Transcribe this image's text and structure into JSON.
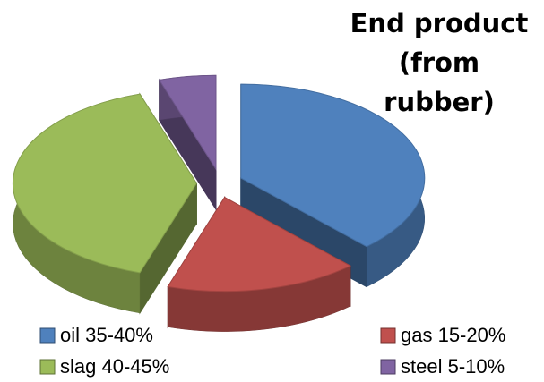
{
  "chart_data": {
    "type": "pie",
    "title": "End product (from rubber)",
    "categories": [
      "oil 35-40%",
      "gas 15-20%",
      "slag 40-45%",
      "steel 5-10%"
    ],
    "values": [
      38,
      17,
      40,
      5
    ],
    "colors": [
      "#4f81bd",
      "#c0504d",
      "#9bbb59",
      "#8064a2"
    ],
    "exploded": true,
    "three_d": true
  }
}
